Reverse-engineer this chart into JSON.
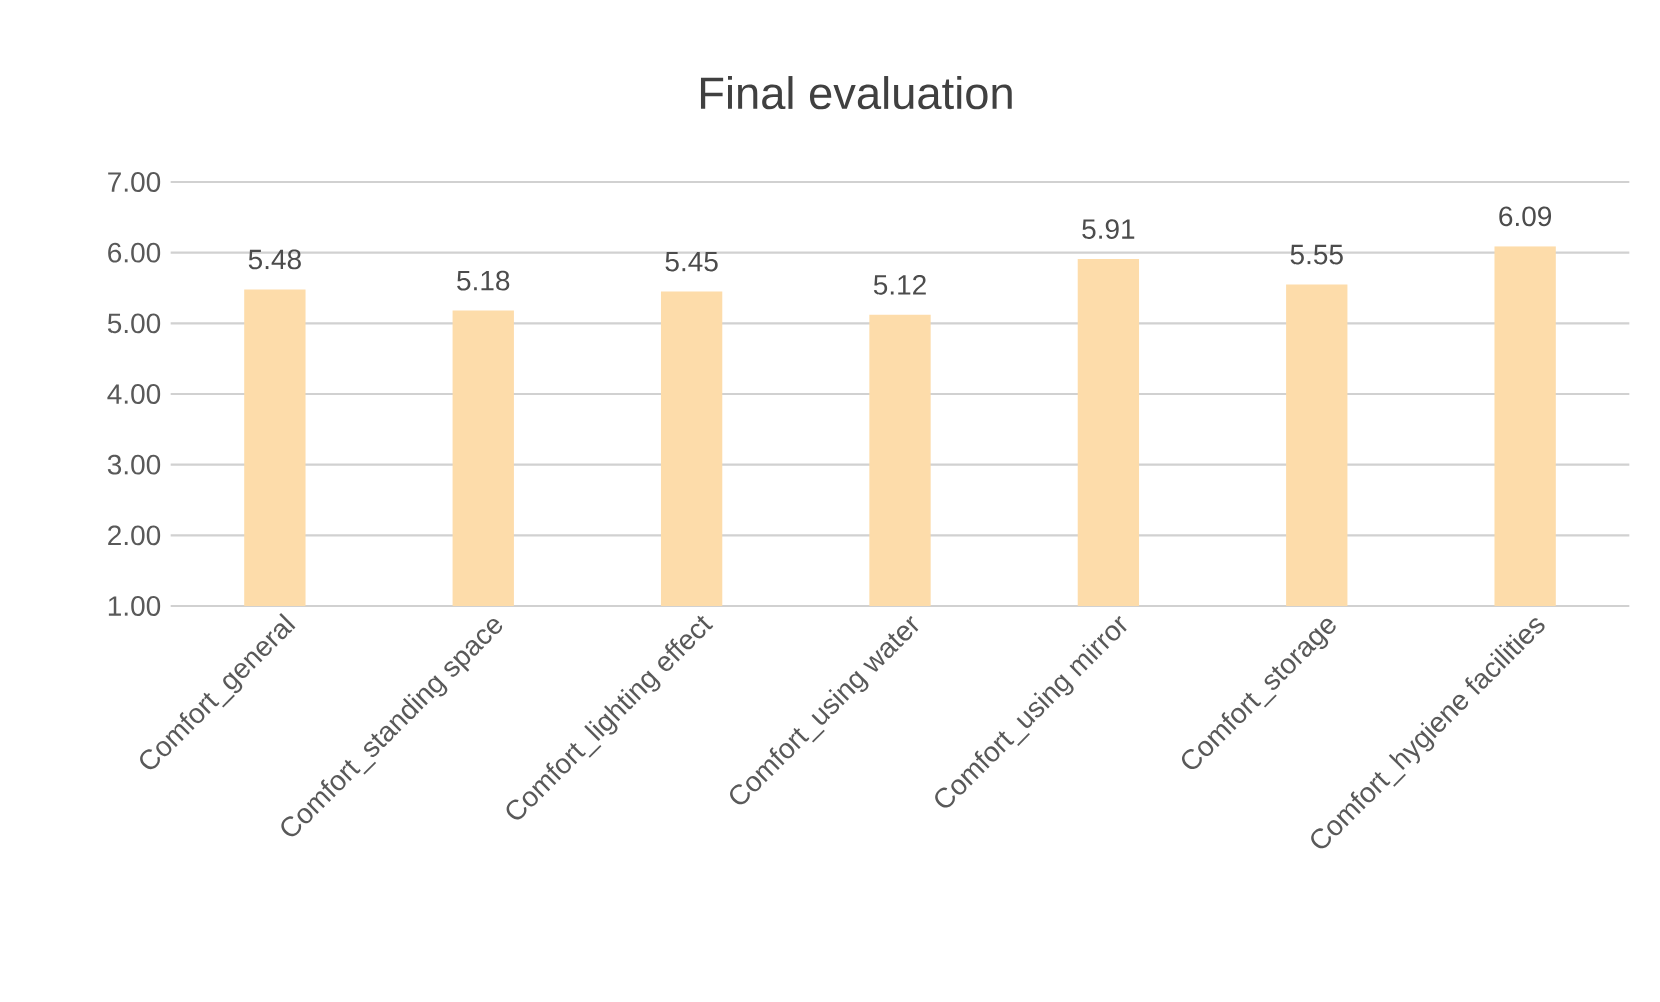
{
  "chart_data": {
    "type": "bar",
    "title": "Final evaluation",
    "categories": [
      "Comfort_general",
      "Comfort_standing space",
      "Comfort_lighting effect",
      "Comfort_using water",
      "Comfort_using mirror",
      "Comfort_storage",
      "Comfort_hygiene facilities"
    ],
    "values": [
      5.48,
      5.18,
      5.45,
      5.12,
      5.91,
      5.55,
      6.09
    ],
    "color": "#fddcaa",
    "ylim": [
      1,
      7
    ],
    "yticks": [
      {
        "value": 1,
        "label": "1.00"
      },
      {
        "value": 2,
        "label": "2.00"
      },
      {
        "value": 3,
        "label": "3.00"
      },
      {
        "value": 4,
        "label": "4.00"
      },
      {
        "value": 5,
        "label": "5.00"
      },
      {
        "value": 6,
        "label": "6.00"
      },
      {
        "value": 7,
        "label": "7.00"
      }
    ],
    "grid": "y",
    "data_labels": true
  }
}
